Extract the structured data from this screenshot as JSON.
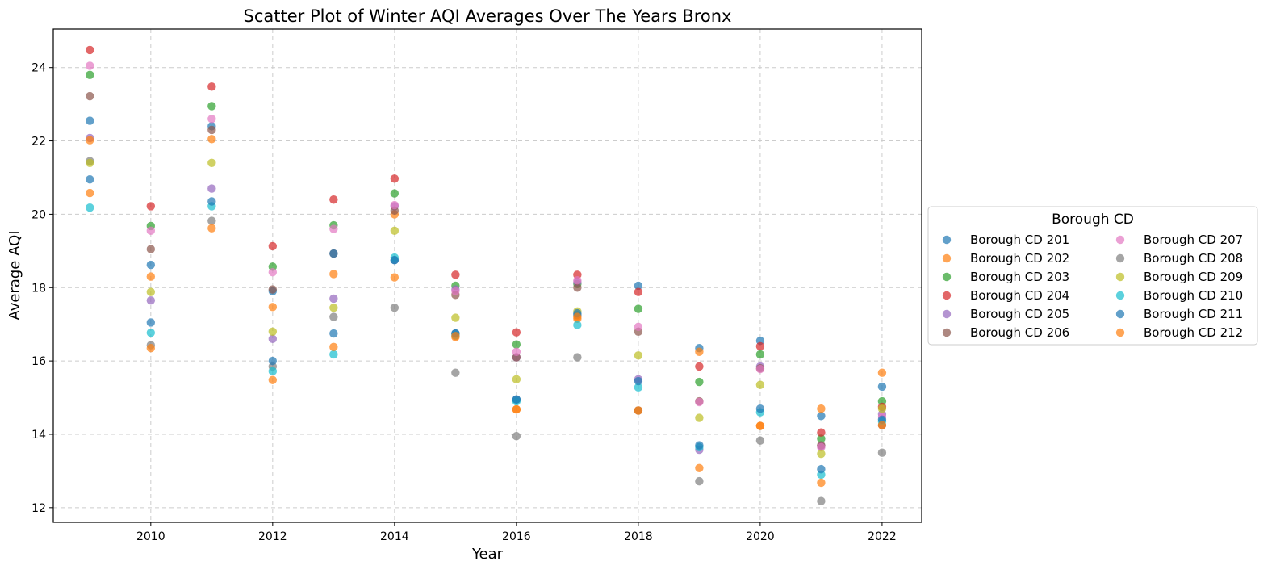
{
  "chart_data": {
    "type": "scatter",
    "title": "Scatter Plot of Winter AQI Averages Over The Years Bronx",
    "xlabel": "Year",
    "ylabel": "Average AQI",
    "xlim": [
      2008.4,
      2022.65
    ],
    "ylim": [
      11.6,
      25.05
    ],
    "xticks": [
      "2010",
      "2012",
      "2014",
      "2016",
      "2018",
      "2020",
      "2022"
    ],
    "yticks": [
      "12",
      "14",
      "16",
      "18",
      "20",
      "22",
      "24"
    ],
    "grid": true,
    "legend": {
      "title": "Borough CD",
      "placement": "outside-right",
      "columns": 2
    },
    "x": [
      2009,
      2010,
      2011,
      2012,
      2013,
      2014,
      2015,
      2016,
      2017,
      2018,
      2019,
      2020,
      2021,
      2022
    ],
    "series": [
      {
        "name": "Borough CD 201",
        "color": "#1f77b4",
        "values": [
          22.55,
          17.05,
          22.4,
          17.9,
          16.75,
          18.75,
          16.75,
          14.95,
          17.25,
          18.05,
          16.35,
          16.55,
          14.5,
          15.3
        ]
      },
      {
        "name": "Borough CD 202",
        "color": "#ff7f0e",
        "values": [
          20.58,
          18.3,
          22.05,
          17.47,
          18.37,
          20.0,
          16.65,
          14.68,
          17.15,
          14.65,
          16.25,
          14.23,
          14.7,
          15.68
        ]
      },
      {
        "name": "Borough CD 203",
        "color": "#2ca02c",
        "values": [
          23.8,
          19.68,
          22.95,
          18.57,
          19.7,
          20.57,
          18.05,
          16.45,
          18.1,
          17.42,
          15.43,
          16.18,
          13.88,
          14.9
        ]
      },
      {
        "name": "Borough CD 204",
        "color": "#d62728",
        "values": [
          24.48,
          20.22,
          23.48,
          19.13,
          20.4,
          20.97,
          18.35,
          16.78,
          18.35,
          17.88,
          15.85,
          16.4,
          14.05,
          14.75
        ]
      },
      {
        "name": "Borough CD 205",
        "color": "#9467bd",
        "values": [
          22.08,
          17.65,
          20.7,
          16.6,
          17.7,
          20.22,
          17.95,
          16.1,
          18.15,
          15.5,
          13.58,
          15.85,
          13.68,
          14.55
        ]
      },
      {
        "name": "Borough CD 206",
        "color": "#8c564b",
        "values": [
          23.22,
          19.05,
          22.3,
          17.95,
          18.93,
          20.1,
          17.8,
          16.1,
          18.0,
          16.8,
          14.9,
          15.8,
          13.7,
          14.25
        ]
      },
      {
        "name": "Borough CD 207",
        "color": "#e377c2",
        "values": [
          24.05,
          19.55,
          22.6,
          18.42,
          19.6,
          20.25,
          17.9,
          16.25,
          18.2,
          16.93,
          14.88,
          15.78,
          13.65,
          14.48
        ]
      },
      {
        "name": "Borough CD 208",
        "color": "#7f7f7f",
        "values": [
          21.45,
          16.43,
          19.82,
          15.85,
          17.2,
          17.45,
          15.68,
          13.95,
          16.1,
          14.65,
          12.72,
          13.83,
          12.18,
          13.5
        ]
      },
      {
        "name": "Borough CD 209",
        "color": "#bcbd22",
        "values": [
          21.4,
          17.88,
          21.4,
          16.8,
          17.45,
          19.55,
          17.18,
          15.5,
          17.35,
          16.15,
          14.45,
          15.35,
          13.47,
          14.7
        ]
      },
      {
        "name": "Borough CD 210",
        "color": "#17becf",
        "values": [
          20.18,
          16.77,
          20.22,
          15.72,
          16.18,
          18.82,
          16.7,
          14.9,
          16.98,
          15.28,
          13.65,
          14.6,
          12.9,
          14.35
        ]
      },
      {
        "name": "Borough CD 211",
        "color": "#1f77b4",
        "values": [
          20.95,
          18.62,
          20.35,
          16.0,
          18.93,
          18.75,
          16.75,
          14.95,
          17.3,
          15.45,
          13.7,
          14.7,
          13.05,
          14.4
        ]
      },
      {
        "name": "Borough CD 212",
        "color": "#ff7f0e",
        "values": [
          22.02,
          16.35,
          19.62,
          15.48,
          16.38,
          18.28,
          16.68,
          14.68,
          17.2,
          14.65,
          13.08,
          14.23,
          12.68,
          14.25
        ]
      }
    ]
  }
}
